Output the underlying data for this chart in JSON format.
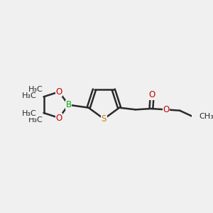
{
  "bg_color": "#f0f0f0",
  "bond_color": "#2a2a2a",
  "bond_width": 1.8,
  "atom_colors": {
    "S": "#b8860b",
    "O": "#cc0000",
    "B": "#00aa00",
    "C": "#2a2a2a"
  },
  "font_size_atom": 8.5,
  "font_size_ch3": 8.0,
  "xlim": [
    0,
    10
  ],
  "ylim": [
    0,
    10
  ]
}
